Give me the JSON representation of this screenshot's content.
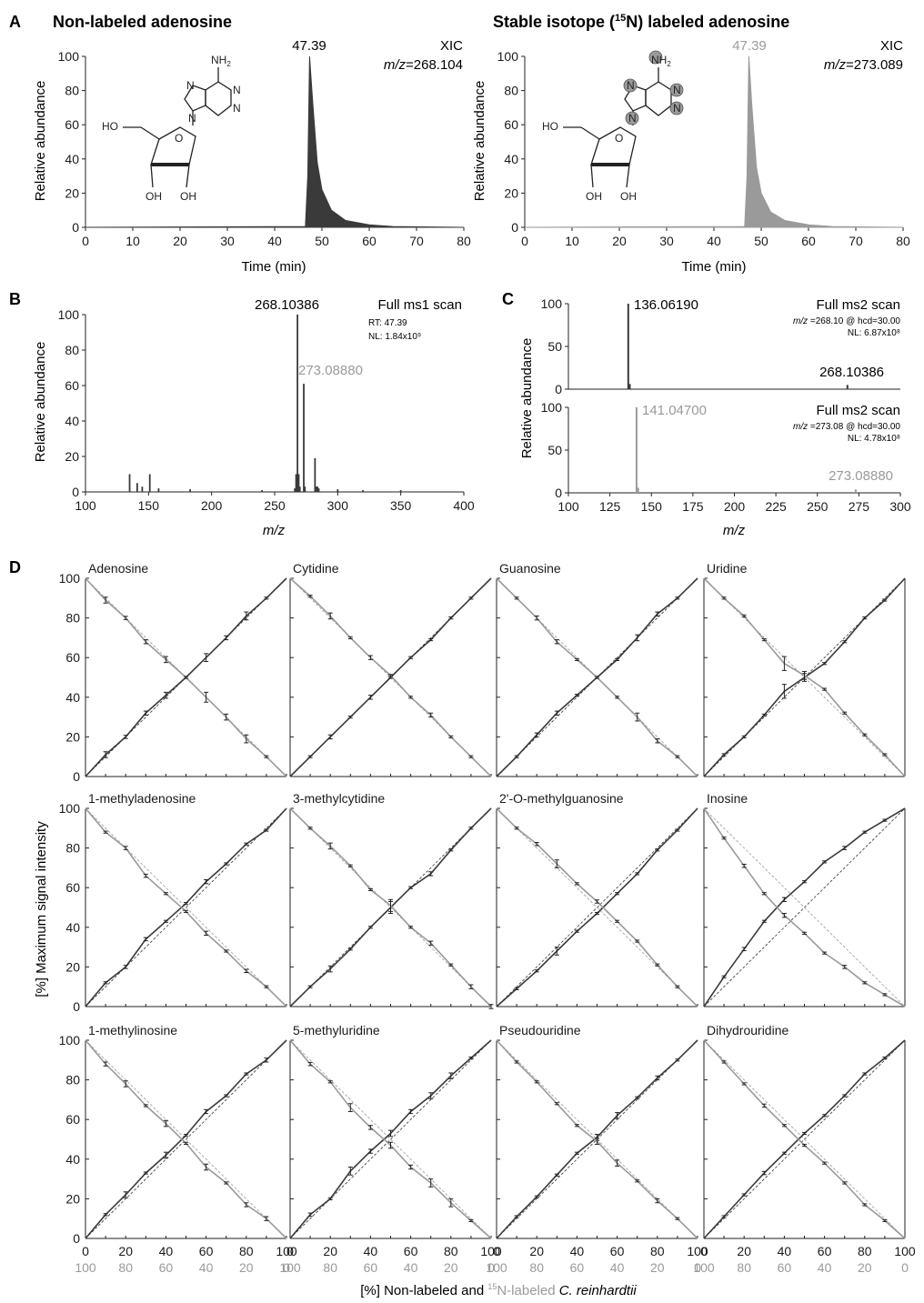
{
  "colors": {
    "dark": "#3a3a3a",
    "light": "#9a9a9a",
    "axis": "#222222"
  },
  "labels": {
    "panel_a": "A",
    "panel_b": "B",
    "panel_c": "C",
    "panel_d": "D",
    "a_left_title": "Non-labeled adenosine",
    "a_right_title_pre": "Stable isotope (",
    "a_right_title_sup": "15",
    "a_right_title_post": "N) labeled adenosine",
    "ylabel_rel": "Relative abundance",
    "xlabel_time": "Time (min)",
    "xic": "XIC",
    "mz_italic": "m/z",
    "mz_left": "=268.104",
    "mz_right": "=273.089",
    "rt_peak": "47.39",
    "b_title": "Full ms1 scan",
    "b_rt": "RT: 47.39",
    "b_nl": "NL: 1.84x10⁹",
    "c_title": "Full ms2 scan",
    "c_top_param": " =268.10 @ hcd=30.00",
    "c_top_nl": "NL: 6.87x10⁸",
    "c_bot_param": " =273.08 @ hcd=30.00",
    "c_bot_nl": "NL: 4.78x10⁸",
    "d_ylabel": "[%] Maximum signal intensity",
    "d_xlabel_1": "[%] Non-labeled and ",
    "d_xlabel_sup": "15",
    "d_xlabel_2": "N-labeled ",
    "d_xlabel_3": "C. reinhardtii",
    "struct_nh2": "NH",
    "struct_nh2_sub": "2",
    "struct_n": "N",
    "struct_o": "O",
    "struct_ho": "HO",
    "struct_oh": "OH"
  },
  "chart_data": [
    {
      "id": "A-left",
      "type": "area",
      "xlabel": "Time (min)",
      "ylabel": "Relative abundance",
      "xlim": [
        0,
        80
      ],
      "ylim": [
        0,
        100
      ],
      "xticks": [
        0,
        10,
        20,
        30,
        40,
        50,
        60,
        70,
        80
      ],
      "yticks": [
        0,
        20,
        40,
        60,
        80,
        100
      ],
      "annotations": [
        "XIC",
        "m/z=268.104",
        "47.39"
      ],
      "series": [
        {
          "name": "",
          "x": [
            0,
            46.5,
            47.0,
            47.39,
            48.0,
            49.0,
            50.0,
            52.0,
            55.0,
            60.0,
            65.0,
            80.0
          ],
          "y": [
            0,
            0.5,
            30,
            100,
            75,
            38,
            22,
            10,
            4,
            1.5,
            0.5,
            0
          ]
        }
      ]
    },
    {
      "id": "A-right",
      "type": "area",
      "xlabel": "Time (min)",
      "ylabel": "Relative abundance",
      "xlim": [
        0,
        80
      ],
      "ylim": [
        0,
        100
      ],
      "xticks": [
        0,
        10,
        20,
        30,
        40,
        50,
        60,
        70,
        80
      ],
      "yticks": [
        0,
        20,
        40,
        60,
        80,
        100
      ],
      "annotations": [
        "XIC",
        "m/z=273.089",
        "47.39"
      ],
      "series": [
        {
          "name": "",
          "x": [
            0,
            46.5,
            47.0,
            47.39,
            48.0,
            49.0,
            50.0,
            52.0,
            55.0,
            60.0,
            65.0,
            80.0
          ],
          "y": [
            0,
            0.5,
            30,
            100,
            72,
            35,
            20,
            9,
            4,
            1.5,
            0.5,
            0
          ]
        }
      ]
    },
    {
      "id": "B",
      "type": "bar",
      "xlabel": "m/z",
      "ylabel": "Relative abundance",
      "xlim": [
        100,
        400
      ],
      "ylim": [
        0,
        100
      ],
      "xticks": [
        100,
        150,
        200,
        250,
        300,
        350,
        400
      ],
      "yticks": [
        0,
        20,
        40,
        60,
        80,
        100
      ],
      "annotations": [
        "Full ms1 scan",
        "RT: 47.39",
        "NL: 1.84x10⁹",
        "268.10386",
        "273.08880"
      ],
      "peaks": [
        [
          135,
          10
        ],
        [
          141,
          5
        ],
        [
          145,
          3
        ],
        [
          151,
          10
        ],
        [
          158,
          2
        ],
        [
          183,
          1.5
        ],
        [
          240,
          1
        ],
        [
          266,
          2
        ],
        [
          267,
          10
        ],
        [
          268.10386,
          100
        ],
        [
          269.1,
          10
        ],
        [
          270,
          3
        ],
        [
          273.0888,
          61
        ],
        [
          274,
          3
        ],
        [
          282,
          19
        ],
        [
          283,
          3
        ],
        [
          284,
          3
        ],
        [
          285,
          2
        ],
        [
          300,
          1.5
        ],
        [
          320,
          1
        ],
        [
          350,
          1
        ]
      ]
    },
    {
      "id": "C-top",
      "type": "bar",
      "xlabel": "m/z",
      "ylabel": "Relative abundance",
      "xlim": [
        100,
        300
      ],
      "ylim": [
        0,
        100
      ],
      "yticks": [
        0,
        50,
        100
      ],
      "annotations": [
        "Full ms2 scan",
        "m/z=268.10 @ hcd=30.00",
        "NL: 6.87x10⁸",
        "136.06190",
        "268.10386"
      ],
      "peaks": [
        [
          136.0619,
          100
        ],
        [
          137.0,
          6
        ],
        [
          268.10386,
          5
        ]
      ]
    },
    {
      "id": "C-bottom",
      "type": "bar",
      "xlabel": "m/z",
      "ylabel": "Relative abundance",
      "xlim": [
        100,
        300
      ],
      "ylim": [
        0,
        100
      ],
      "xticks": [
        100,
        125,
        150,
        175,
        200,
        225,
        250,
        275,
        300
      ],
      "yticks": [
        0,
        50,
        100
      ],
      "annotations": [
        "Full ms2 scan",
        "m/z=273.08 @ hcd=30.00",
        "NL: 4.78x10⁸",
        "141.04700",
        "273.08880"
      ],
      "peaks": [
        [
          141.047,
          100
        ],
        [
          142.0,
          6
        ],
        [
          273.0888,
          4
        ]
      ]
    },
    {
      "id": "D",
      "type": "line",
      "xlabel": "[%] Non-labeled and 15N-labeled C. reinhardtii",
      "ylabel": "[%] Maximum signal intensity",
      "x_top": [
        0,
        20,
        40,
        60,
        80,
        100
      ],
      "x_bottom": [
        100,
        80,
        60,
        40,
        20,
        0
      ],
      "ylim": [
        0,
        100
      ],
      "yticks": [
        0,
        20,
        40,
        60,
        80,
        100
      ],
      "x": [
        0,
        10,
        20,
        30,
        40,
        50,
        60,
        70,
        80,
        90,
        100
      ],
      "panels": [
        {
          "name": "Adenosine",
          "nonlabeled": [
            0,
            11,
            20,
            32,
            41,
            50,
            60,
            70,
            81,
            90,
            100
          ],
          "labeled": [
            100,
            89,
            80,
            68,
            59,
            50,
            40,
            30,
            19,
            10,
            0
          ],
          "err_nl": [
            0,
            1.5,
            0.8,
            1,
            1.5,
            0.5,
            2,
            1,
            2,
            0.5,
            0
          ],
          "err_l": [
            0,
            1.5,
            0.8,
            1,
            1.5,
            0.5,
            2.5,
            1.5,
            2,
            0.5,
            0
          ]
        },
        {
          "name": "Cytidine",
          "nonlabeled": [
            0,
            10,
            20,
            30,
            40,
            50,
            60,
            69,
            80,
            90,
            100
          ],
          "labeled": [
            100,
            91,
            81,
            70,
            60,
            51,
            40,
            31,
            20,
            10,
            0
          ],
          "err_nl": [
            0,
            0.5,
            1,
            0.5,
            1,
            0.5,
            0.5,
            0.5,
            0.5,
            0.5,
            0
          ],
          "err_l": [
            0,
            0.5,
            1.5,
            0.5,
            1,
            0.5,
            0.5,
            1,
            0.5,
            0.5,
            0
          ]
        },
        {
          "name": "Guanosine",
          "nonlabeled": [
            0,
            10,
            21,
            32,
            41,
            50,
            59,
            70,
            82,
            90,
            100
          ],
          "labeled": [
            100,
            90,
            80,
            68,
            59,
            50,
            40,
            30,
            18,
            10,
            0
          ],
          "err_nl": [
            0,
            0.5,
            1,
            1,
            0.5,
            0.5,
            0.5,
            1.5,
            1,
            0.5,
            0
          ],
          "err_l": [
            0,
            0.5,
            1,
            1,
            0.5,
            0.5,
            0.5,
            2,
            1,
            0.5,
            0
          ]
        },
        {
          "name": "Uridine",
          "nonlabeled": [
            0,
            11,
            20,
            31,
            43,
            50,
            57,
            68,
            80,
            89,
            100
          ],
          "labeled": [
            100,
            90,
            81,
            69,
            57,
            51,
            44,
            32,
            21,
            11,
            0
          ],
          "err_nl": [
            0,
            0.5,
            0.5,
            0.5,
            3.5,
            2,
            0.5,
            0.5,
            0.5,
            0.5,
            0
          ],
          "err_l": [
            0,
            0.5,
            0.5,
            0.5,
            3.5,
            2,
            0.5,
            0.5,
            0.5,
            0.5,
            0
          ]
        },
        {
          "name": "1-methyladenosine",
          "nonlabeled": [
            0,
            12,
            20,
            34,
            43,
            52,
            63,
            72,
            82,
            89,
            100
          ],
          "labeled": [
            100,
            88,
            80,
            66,
            57,
            48,
            37,
            28,
            18,
            10,
            0
          ],
          "err_nl": [
            0,
            0.5,
            0.8,
            0.8,
            0.5,
            0.5,
            1,
            0.5,
            0.5,
            0.5,
            0
          ],
          "err_l": [
            0,
            0.5,
            0.8,
            0.8,
            0.5,
            0.5,
            1,
            0.5,
            0.8,
            0.5,
            0
          ]
        },
        {
          "name": "3-methylcytidine",
          "nonlabeled": [
            0,
            10,
            19,
            29,
            40,
            50,
            60,
            67,
            79,
            90,
            100
          ],
          "labeled": [
            100,
            90,
            81,
            71,
            59,
            51,
            40,
            32,
            21,
            10,
            0
          ],
          "err_nl": [
            0,
            0.5,
            1.5,
            0.5,
            0.5,
            3,
            0.5,
            1,
            0.5,
            0.5,
            0
          ],
          "err_l": [
            0,
            0.5,
            1.5,
            0.5,
            0.5,
            3,
            0.5,
            1,
            0.5,
            1,
            1
          ]
        },
        {
          "name": "2'-O-methylguanosine",
          "nonlabeled": [
            0,
            9,
            18,
            28,
            38,
            47,
            57,
            67,
            79,
            89,
            100
          ],
          "labeled": [
            100,
            90,
            82,
            72,
            62,
            53,
            43,
            33,
            21,
            10,
            0
          ],
          "err_nl": [
            0,
            0.5,
            0.5,
            2,
            0.5,
            0.5,
            0.5,
            0.5,
            0.5,
            0.5,
            0
          ],
          "err_l": [
            0,
            0.5,
            0.8,
            2,
            0.5,
            0.8,
            0.5,
            0.5,
            0.5,
            0.5,
            0
          ]
        },
        {
          "name": "Inosine",
          "nonlabeled": [
            0,
            15,
            29,
            43,
            54,
            63,
            73,
            80,
            88,
            94,
            100
          ],
          "labeled": [
            100,
            85,
            71,
            57,
            46,
            37,
            27,
            20,
            12,
            6,
            0
          ],
          "err_nl": [
            0,
            0.5,
            0.8,
            0.5,
            1,
            0.5,
            0.5,
            0.8,
            0.5,
            0.5,
            0
          ],
          "err_l": [
            0,
            0.5,
            0.8,
            0.5,
            1,
            0.5,
            0.5,
            0.8,
            0.5,
            0.5,
            0
          ]
        },
        {
          "name": "1-methylinosine",
          "nonlabeled": [
            0,
            12,
            22,
            33,
            42,
            52,
            64,
            72,
            83,
            90,
            100
          ],
          "labeled": [
            100,
            88,
            78,
            67,
            58,
            48,
            36,
            28,
            17,
            10,
            0
          ],
          "err_nl": [
            0,
            0.5,
            1.5,
            0.5,
            1.5,
            0.5,
            1,
            0.5,
            0.5,
            1,
            0
          ],
          "err_l": [
            0,
            1,
            1.5,
            0.5,
            1.5,
            0.5,
            1.5,
            0.5,
            1,
            1,
            0
          ]
        },
        {
          "name": "5-methyluridine",
          "nonlabeled": [
            0,
            12,
            20,
            34,
            44,
            53,
            64,
            72,
            82,
            91,
            100
          ],
          "labeled": [
            100,
            88,
            79,
            66,
            56,
            47,
            36,
            28,
            18,
            9,
            0
          ],
          "err_nl": [
            0,
            0.8,
            0.5,
            2,
            1,
            1.5,
            1,
            1.5,
            1.5,
            0.5,
            0
          ],
          "err_l": [
            0,
            0.8,
            0.5,
            2,
            1,
            1.5,
            1,
            2,
            2,
            0.5,
            0
          ]
        },
        {
          "name": "Pseudouridine",
          "nonlabeled": [
            0,
            11,
            21,
            32,
            43,
            51,
            62,
            71,
            81,
            90,
            100
          ],
          "labeled": [
            100,
            89,
            79,
            68,
            57,
            49,
            38,
            29,
            19,
            10,
            0
          ],
          "err_nl": [
            0,
            0.5,
            0.5,
            0.5,
            0.5,
            1.5,
            1.5,
            0.5,
            1,
            0.5,
            0
          ],
          "err_l": [
            0,
            0.5,
            0.5,
            0.5,
            0.5,
            1.5,
            1.5,
            0.5,
            1,
            0.5,
            0
          ]
        },
        {
          "name": "Dihydrouridine",
          "nonlabeled": [
            0,
            11,
            22,
            33,
            43,
            53,
            62,
            72,
            83,
            91,
            100
          ],
          "labeled": [
            100,
            89,
            78,
            67,
            57,
            47,
            38,
            28,
            17,
            9,
            0
          ],
          "err_nl": [
            0,
            0.5,
            0.5,
            0.8,
            0.5,
            0.5,
            0.5,
            0.5,
            0.5,
            0.5,
            0
          ],
          "err_l": [
            0,
            0.5,
            0.5,
            0.8,
            0.5,
            0.5,
            0.5,
            0.5,
            0.5,
            0.5,
            0
          ]
        }
      ]
    }
  ]
}
